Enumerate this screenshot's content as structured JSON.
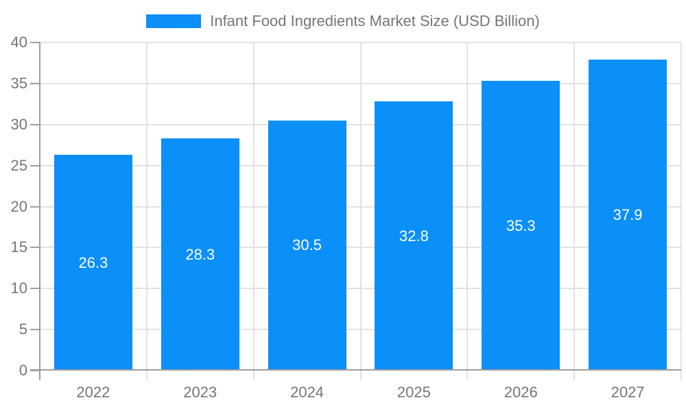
{
  "chart_data": {
    "type": "bar",
    "title": "Infant Food Ingredients Market Size (USD Billion)",
    "categories": [
      "2022",
      "2023",
      "2024",
      "2025",
      "2026",
      "2027"
    ],
    "values": [
      26.3,
      28.3,
      30.5,
      32.8,
      35.3,
      37.9
    ],
    "value_labels": [
      "26.3",
      "28.3",
      "30.5",
      "32.8",
      "35.3",
      "37.9"
    ],
    "xlabel": "",
    "ylabel": "",
    "ylim": [
      0,
      40
    ],
    "yticks": [
      0,
      5,
      10,
      15,
      20,
      25,
      30,
      35,
      40
    ],
    "grid": true,
    "legend_position": "top"
  },
  "legend": {
    "label": "Infant Food Ingredients Market Size (USD Billion)"
  },
  "colors": {
    "bar": "#0b8ff9",
    "axis": "#9e9e9e",
    "grid": "#e2e2e2",
    "text": "#757575",
    "value_label": "#ffffff"
  }
}
